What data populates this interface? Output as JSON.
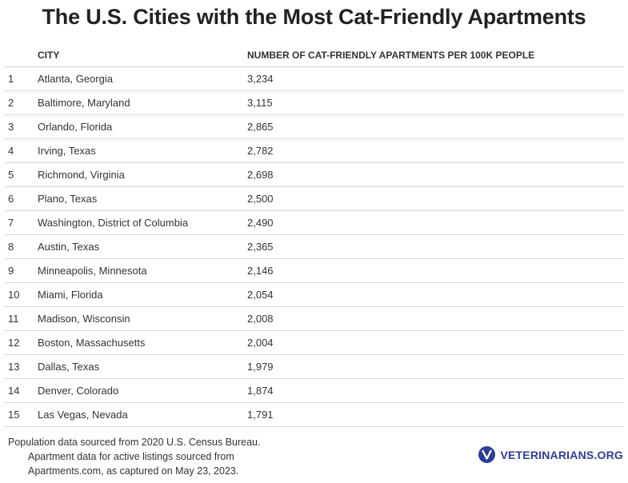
{
  "title": "The U.S. Cities with the Most Cat-Friendly Apartments",
  "chart_data": {
    "type": "table",
    "columns": [
      "",
      "CITY",
      "NUMBER OF CAT-FRIENDLY APARTMENTS PER 100K PEOPLE"
    ],
    "rows": [
      {
        "rank": "1",
        "city": "Atlanta, Georgia",
        "value": "3,234"
      },
      {
        "rank": "2",
        "city": "Baltimore, Maryland",
        "value": "3,115"
      },
      {
        "rank": "3",
        "city": "Orlando, Florida",
        "value": "2,865"
      },
      {
        "rank": "4",
        "city": "Irving, Texas",
        "value": "2,782"
      },
      {
        "rank": "5",
        "city": "Richmond, Virginia",
        "value": "2,698"
      },
      {
        "rank": "6",
        "city": "Plano, Texas",
        "value": "2,500"
      },
      {
        "rank": "7",
        "city": "Washington, District of Columbia",
        "value": "2,490"
      },
      {
        "rank": "8",
        "city": "Austin, Texas",
        "value": "2,365"
      },
      {
        "rank": "9",
        "city": "Minneapolis, Minnesota",
        "value": "2,146"
      },
      {
        "rank": "10",
        "city": "Miami, Florida",
        "value": "2,054"
      },
      {
        "rank": "11",
        "city": "Madison, Wisconsin",
        "value": "2,008"
      },
      {
        "rank": "12",
        "city": "Boston, Massachusetts",
        "value": "2,004"
      },
      {
        "rank": "13",
        "city": "Dallas, Texas",
        "value": "1,979"
      },
      {
        "rank": "14",
        "city": "Denver, Colorado",
        "value": "1,874"
      },
      {
        "rank": "15",
        "city": "Las Vegas, Nevada",
        "value": "1,791"
      }
    ]
  },
  "footnote": {
    "line1": "Population data sourced from 2020 U.S. Census Bureau.",
    "line2": "Apartment data for active listings sourced from",
    "line3": "Apartments.com, as captured on May 23, 2023."
  },
  "brand": {
    "name": "VETERINARIANS.ORG",
    "logo_icon": "veterinarians-v-logo-icon",
    "color": "#2f3d99"
  }
}
